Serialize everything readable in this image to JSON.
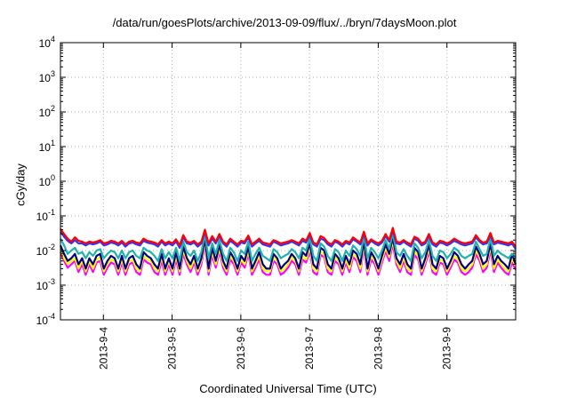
{
  "chart_data": {
    "type": "line",
    "title": "/data/run/goesPlots/archive/2013-09-09/flux/../bryn/7daysMoon.plot",
    "xlabel": "Coordinated Universal Time (UTC)",
    "ylabel": "cGy/day",
    "yscale": "log",
    "ylim": [
      0.0001,
      10000
    ],
    "xlim": [
      "2013-09-03T09:00",
      "2013-09-10T00:00"
    ],
    "grid": true,
    "yticks": [
      {
        "value": 0.0001,
        "base": "10",
        "exp": "-4"
      },
      {
        "value": 0.001,
        "base": "10",
        "exp": "-3"
      },
      {
        "value": 0.01,
        "base": "10",
        "exp": "-2"
      },
      {
        "value": 0.1,
        "base": "10",
        "exp": "-1"
      },
      {
        "value": 1,
        "base": "10",
        "exp": "0"
      },
      {
        "value": 10,
        "base": "10",
        "exp": "1"
      },
      {
        "value": 100,
        "base": "10",
        "exp": "2"
      },
      {
        "value": 1000,
        "base": "10",
        "exp": "3"
      },
      {
        "value": 10000,
        "base": "10",
        "exp": "4"
      }
    ],
    "xticks": [
      {
        "value": "2013-09-04T00:00",
        "label": "2013-9-4"
      },
      {
        "value": "2013-09-05T00:00",
        "label": "2013-9-5"
      },
      {
        "value": "2013-09-06T00:00",
        "label": "2013-9-6"
      },
      {
        "value": "2013-09-07T00:00",
        "label": "2013-9-7"
      },
      {
        "value": "2013-09-08T00:00",
        "label": "2013-9-8"
      },
      {
        "value": "2013-09-09T00:00",
        "label": "2013-9-9"
      }
    ],
    "series": [
      {
        "color": "#ff0000",
        "values": [
          0.042,
          0.03,
          0.022,
          0.018,
          0.024,
          0.019,
          0.018,
          0.016,
          0.018,
          0.017,
          0.018,
          0.02,
          0.016,
          0.017,
          0.019,
          0.018,
          0.016,
          0.019,
          0.015,
          0.018,
          0.019,
          0.017,
          0.016,
          0.022,
          0.019,
          0.018,
          0.017,
          0.015,
          0.02,
          0.016,
          0.018,
          0.016,
          0.021,
          0.014,
          0.028,
          0.018,
          0.017,
          0.019,
          0.015,
          0.018,
          0.04,
          0.016,
          0.026,
          0.018,
          0.03,
          0.018,
          0.015,
          0.022,
          0.018,
          0.015,
          0.019,
          0.018,
          0.027,
          0.015,
          0.018,
          0.022,
          0.017,
          0.016,
          0.015,
          0.02,
          0.018,
          0.016,
          0.017,
          0.018,
          0.02,
          0.018,
          0.016,
          0.022,
          0.019,
          0.032,
          0.017,
          0.015,
          0.026,
          0.023,
          0.017,
          0.015,
          0.02,
          0.018,
          0.015,
          0.019,
          0.017,
          0.024,
          0.02,
          0.017,
          0.035,
          0.016,
          0.021,
          0.018,
          0.016,
          0.019,
          0.03,
          0.02,
          0.045,
          0.018,
          0.017,
          0.02,
          0.017,
          0.015,
          0.025,
          0.022,
          0.016,
          0.018,
          0.03,
          0.017,
          0.015,
          0.019,
          0.018,
          0.016,
          0.018,
          0.022,
          0.019,
          0.017,
          0.016,
          0.017,
          0.018,
          0.028,
          0.02,
          0.017,
          0.018,
          0.032,
          0.017,
          0.019,
          0.018,
          0.017,
          0.016,
          0.018,
          0.013
        ]
      },
      {
        "color": "#3333ff",
        "values": [
          0.035,
          0.025,
          0.019,
          0.016,
          0.02,
          0.016,
          0.016,
          0.014,
          0.016,
          0.015,
          0.016,
          0.018,
          0.014,
          0.015,
          0.017,
          0.016,
          0.014,
          0.017,
          0.013,
          0.016,
          0.017,
          0.015,
          0.014,
          0.019,
          0.017,
          0.016,
          0.015,
          0.013,
          0.018,
          0.014,
          0.016,
          0.014,
          0.018,
          0.012,
          0.024,
          0.016,
          0.015,
          0.017,
          0.013,
          0.016,
          0.035,
          0.014,
          0.022,
          0.016,
          0.026,
          0.016,
          0.013,
          0.019,
          0.016,
          0.013,
          0.017,
          0.016,
          0.024,
          0.013,
          0.016,
          0.019,
          0.015,
          0.014,
          0.013,
          0.018,
          0.016,
          0.014,
          0.015,
          0.016,
          0.018,
          0.016,
          0.014,
          0.019,
          0.017,
          0.028,
          0.015,
          0.013,
          0.022,
          0.02,
          0.015,
          0.013,
          0.018,
          0.016,
          0.013,
          0.017,
          0.015,
          0.021,
          0.018,
          0.015,
          0.03,
          0.014,
          0.019,
          0.016,
          0.014,
          0.017,
          0.026,
          0.018,
          0.038,
          0.016,
          0.015,
          0.018,
          0.015,
          0.013,
          0.022,
          0.019,
          0.014,
          0.016,
          0.026,
          0.015,
          0.013,
          0.017,
          0.016,
          0.014,
          0.016,
          0.019,
          0.017,
          0.015,
          0.014,
          0.015,
          0.016,
          0.024,
          0.018,
          0.015,
          0.016,
          0.028,
          0.015,
          0.017,
          0.016,
          0.015,
          0.014,
          0.016,
          0.011
        ]
      },
      {
        "color": "#20b2aa",
        "values": [
          0.022,
          0.014,
          0.008,
          0.01,
          0.012,
          0.008,
          0.009,
          0.006,
          0.009,
          0.007,
          0.01,
          0.011,
          0.006,
          0.008,
          0.01,
          0.009,
          0.006,
          0.01,
          0.006,
          0.009,
          0.01,
          0.007,
          0.006,
          0.012,
          0.01,
          0.009,
          0.007,
          0.005,
          0.011,
          0.006,
          0.009,
          0.006,
          0.012,
          0.005,
          0.018,
          0.009,
          0.007,
          0.01,
          0.005,
          0.009,
          0.03,
          0.006,
          0.016,
          0.008,
          0.02,
          0.008,
          0.005,
          0.012,
          0.009,
          0.005,
          0.01,
          0.008,
          0.018,
          0.005,
          0.008,
          0.012,
          0.007,
          0.006,
          0.005,
          0.011,
          0.009,
          0.006,
          0.007,
          0.008,
          0.011,
          0.009,
          0.006,
          0.012,
          0.01,
          0.022,
          0.007,
          0.005,
          0.016,
          0.013,
          0.007,
          0.005,
          0.011,
          0.009,
          0.005,
          0.01,
          0.007,
          0.014,
          0.011,
          0.007,
          0.026,
          0.006,
          0.012,
          0.009,
          0.006,
          0.01,
          0.02,
          0.011,
          0.032,
          0.009,
          0.007,
          0.011,
          0.007,
          0.005,
          0.016,
          0.012,
          0.006,
          0.009,
          0.02,
          0.007,
          0.005,
          0.01,
          0.009,
          0.006,
          0.008,
          0.012,
          0.01,
          0.007,
          0.006,
          0.007,
          0.008,
          0.018,
          0.011,
          0.007,
          0.008,
          0.022,
          0.007,
          0.01,
          0.008,
          0.007,
          0.006,
          0.008,
          0.006
        ]
      },
      {
        "color": "#000080",
        "values": [
          0.014,
          0.008,
          0.005,
          0.006,
          0.008,
          0.004,
          0.006,
          0.003,
          0.006,
          0.004,
          0.007,
          0.008,
          0.003,
          0.005,
          0.007,
          0.006,
          0.003,
          0.007,
          0.003,
          0.006,
          0.007,
          0.004,
          0.003,
          0.009,
          0.007,
          0.006,
          0.004,
          0.003,
          0.008,
          0.003,
          0.006,
          0.003,
          0.009,
          0.003,
          0.013,
          0.006,
          0.004,
          0.007,
          0.003,
          0.006,
          0.022,
          0.003,
          0.012,
          0.005,
          0.015,
          0.005,
          0.003,
          0.009,
          0.006,
          0.003,
          0.007,
          0.005,
          0.013,
          0.003,
          0.005,
          0.009,
          0.004,
          0.003,
          0.003,
          0.008,
          0.006,
          0.003,
          0.004,
          0.005,
          0.008,
          0.006,
          0.003,
          0.009,
          0.007,
          0.016,
          0.004,
          0.003,
          0.012,
          0.01,
          0.004,
          0.003,
          0.008,
          0.006,
          0.003,
          0.007,
          0.004,
          0.01,
          0.008,
          0.004,
          0.019,
          0.003,
          0.009,
          0.006,
          0.003,
          0.007,
          0.015,
          0.008,
          0.024,
          0.006,
          0.004,
          0.008,
          0.004,
          0.003,
          0.012,
          0.009,
          0.003,
          0.006,
          0.015,
          0.004,
          0.003,
          0.007,
          0.006,
          0.003,
          0.005,
          0.009,
          0.007,
          0.004,
          0.003,
          0.004,
          0.005,
          0.013,
          0.008,
          0.004,
          0.005,
          0.016,
          0.004,
          0.007,
          0.005,
          0.004,
          0.003,
          0.008,
          0.004
        ]
      },
      {
        "color": "#ffff00",
        "values": [
          0.011,
          0.006,
          0.004,
          0.005,
          0.006,
          0.003,
          0.005,
          0.0025,
          0.005,
          0.003,
          0.0055,
          0.0065,
          0.0025,
          0.004,
          0.0055,
          0.005,
          0.0025,
          0.0055,
          0.0025,
          0.005,
          0.0055,
          0.003,
          0.0025,
          0.007,
          0.0055,
          0.005,
          0.003,
          0.0025,
          0.0065,
          0.0025,
          0.005,
          0.0025,
          0.007,
          0.0025,
          0.01,
          0.005,
          0.003,
          0.0055,
          0.0025,
          0.005,
          0.018,
          0.0025,
          0.0095,
          0.004,
          0.012,
          0.004,
          0.0025,
          0.007,
          0.005,
          0.0025,
          0.0055,
          0.004,
          0.01,
          0.0025,
          0.004,
          0.007,
          0.003,
          0.0025,
          0.0025,
          0.0065,
          0.005,
          0.0025,
          0.003,
          0.004,
          0.0065,
          0.005,
          0.0025,
          0.007,
          0.0055,
          0.013,
          0.003,
          0.0025,
          0.0095,
          0.008,
          0.003,
          0.0025,
          0.0065,
          0.005,
          0.0025,
          0.0055,
          0.003,
          0.008,
          0.0065,
          0.003,
          0.015,
          0.0025,
          0.007,
          0.005,
          0.0025,
          0.0055,
          0.012,
          0.0065,
          0.019,
          0.005,
          0.003,
          0.0065,
          0.003,
          0.0025,
          0.0095,
          0.007,
          0.0025,
          0.005,
          0.012,
          0.003,
          0.0025,
          0.0055,
          0.005,
          0.0025,
          0.004,
          0.007,
          0.0055,
          0.003,
          0.0025,
          0.003,
          0.004,
          0.01,
          0.0065,
          0.003,
          0.004,
          0.013,
          0.003,
          0.0055,
          0.004,
          0.003,
          0.0025,
          0.006,
          0.0035
        ]
      },
      {
        "color": "#ff00ff",
        "values": [
          0.009,
          0.005,
          0.0032,
          0.004,
          0.005,
          0.0024,
          0.004,
          0.002,
          0.004,
          0.0024,
          0.0045,
          0.005,
          0.002,
          0.0032,
          0.0045,
          0.004,
          0.002,
          0.0045,
          0.002,
          0.004,
          0.0045,
          0.0024,
          0.002,
          0.0055,
          0.0045,
          0.004,
          0.0024,
          0.002,
          0.005,
          0.002,
          0.004,
          0.002,
          0.0055,
          0.002,
          0.008,
          0.004,
          0.0024,
          0.0045,
          0.002,
          0.004,
          0.015,
          0.002,
          0.0075,
          0.0032,
          0.0095,
          0.0032,
          0.002,
          0.0055,
          0.004,
          0.002,
          0.0045,
          0.0032,
          0.008,
          0.002,
          0.0032,
          0.0055,
          0.0024,
          0.002,
          0.002,
          0.005,
          0.004,
          0.002,
          0.0024,
          0.0032,
          0.005,
          0.004,
          0.002,
          0.0055,
          0.0045,
          0.01,
          0.0024,
          0.002,
          0.0075,
          0.0065,
          0.0024,
          0.002,
          0.005,
          0.004,
          0.002,
          0.0045,
          0.0024,
          0.0065,
          0.005,
          0.0024,
          0.012,
          0.002,
          0.0055,
          0.004,
          0.002,
          0.0045,
          0.0095,
          0.005,
          0.015,
          0.004,
          0.0024,
          0.005,
          0.0024,
          0.002,
          0.0075,
          0.0055,
          0.002,
          0.004,
          0.0095,
          0.0024,
          0.002,
          0.0045,
          0.004,
          0.002,
          0.0032,
          0.0055,
          0.0045,
          0.0024,
          0.002,
          0.0024,
          0.0032,
          0.008,
          0.005,
          0.0024,
          0.0032,
          0.01,
          0.0024,
          0.0045,
          0.0032,
          0.0024,
          0.002,
          0.0045,
          0.0028
        ]
      }
    ]
  }
}
